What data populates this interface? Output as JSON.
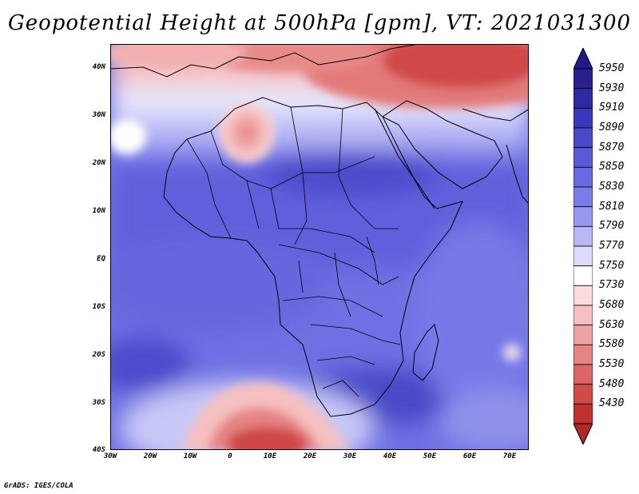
{
  "title": "Geopotential Height at 500hPa [gpm], VT: 2021031300",
  "footer": "GrADS: IGES/COLA",
  "map": {
    "variable": "Geopotential height",
    "level": "500hPa",
    "units": "gpm",
    "valid_time": "2021031300",
    "lon_range": [
      -30,
      75
    ],
    "lat_range": [
      -40,
      45
    ],
    "lat_ticks": [
      {
        "value": 40,
        "label": "40N"
      },
      {
        "value": 30,
        "label": "30N"
      },
      {
        "value": 20,
        "label": "20N"
      },
      {
        "value": 10,
        "label": "10N"
      },
      {
        "value": 0,
        "label": "EQ"
      },
      {
        "value": -10,
        "label": "10S"
      },
      {
        "value": -20,
        "label": "20S"
      },
      {
        "value": -30,
        "label": "30S"
      },
      {
        "value": -40,
        "label": "40S"
      }
    ],
    "lon_ticks": [
      {
        "value": -30,
        "label": "30W"
      },
      {
        "value": -20,
        "label": "20W"
      },
      {
        "value": -10,
        "label": "10W"
      },
      {
        "value": 0,
        "label": "0"
      },
      {
        "value": 10,
        "label": "10E"
      },
      {
        "value": 20,
        "label": "20E"
      },
      {
        "value": 30,
        "label": "30E"
      },
      {
        "value": 40,
        "label": "40E"
      },
      {
        "value": 50,
        "label": "50E"
      },
      {
        "value": 60,
        "label": "60E"
      },
      {
        "value": 70,
        "label": "70E"
      }
    ]
  },
  "colorbar": {
    "levels": [
      {
        "label": "5950",
        "color": "#2a1f8f"
      },
      {
        "label": "5930",
        "color": "#2f2aa3"
      },
      {
        "label": "5910",
        "color": "#3a38b8"
      },
      {
        "label": "5890",
        "color": "#4a4ac8"
      },
      {
        "label": "5870",
        "color": "#5a5ad6"
      },
      {
        "label": "5850",
        "color": "#6a6ae0"
      },
      {
        "label": "5830",
        "color": "#7c7ce8"
      },
      {
        "label": "5810",
        "color": "#9898ef"
      },
      {
        "label": "5790",
        "color": "#b8b8f5"
      },
      {
        "label": "5770",
        "color": "#dcdcfa"
      },
      {
        "label": "5750",
        "color": "#ffffff"
      },
      {
        "label": "5730",
        "color": "#fbdcdc"
      },
      {
        "label": "5680",
        "color": "#f6c0c0"
      },
      {
        "label": "5630",
        "color": "#efa2a2"
      },
      {
        "label": "5580",
        "color": "#e68383"
      },
      {
        "label": "5530",
        "color": "#dc6565"
      },
      {
        "label": "5480",
        "color": "#d04a4a"
      },
      {
        "label": "5430",
        "color": "#bf3030"
      }
    ],
    "top_color": "#24198a",
    "bottom_color": "#b02828"
  }
}
